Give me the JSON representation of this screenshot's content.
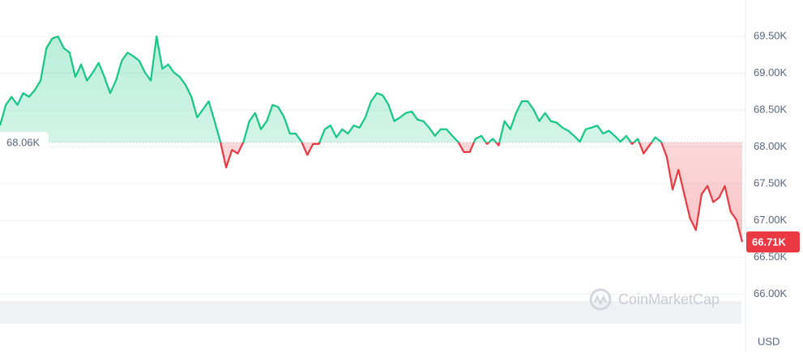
{
  "chart_data": {
    "type": "line",
    "values": [
      68.29,
      68.57,
      68.68,
      68.57,
      68.73,
      68.68,
      68.77,
      68.9,
      69.34,
      69.47,
      69.5,
      69.34,
      69.28,
      68.95,
      69.12,
      68.9,
      69.01,
      69.14,
      68.95,
      68.73,
      68.9,
      69.17,
      69.28,
      69.23,
      69.17,
      69.01,
      68.9,
      69.5,
      69.06,
      69.12,
      69.01,
      68.95,
      68.84,
      68.68,
      68.4,
      68.51,
      68.62,
      68.35,
      68.07,
      67.72,
      67.96,
      67.91,
      68.07,
      68.35,
      68.46,
      68.24,
      68.35,
      68.57,
      68.54,
      68.4,
      68.18,
      68.18,
      68.07,
      67.89,
      68.04,
      68.04,
      68.24,
      68.29,
      68.13,
      68.24,
      68.18,
      68.29,
      68.26,
      68.4,
      68.62,
      68.73,
      68.7,
      68.57,
      68.35,
      68.4,
      68.46,
      68.48,
      68.37,
      68.35,
      68.26,
      68.15,
      68.24,
      68.24,
      68.15,
      68.07,
      67.93,
      67.93,
      68.11,
      68.15,
      68.04,
      68.11,
      68.02,
      68.35,
      68.24,
      68.46,
      68.62,
      68.62,
      68.51,
      68.35,
      68.46,
      68.35,
      68.33,
      68.26,
      68.22,
      68.15,
      68.07,
      68.24,
      68.26,
      68.29,
      68.18,
      68.22,
      68.15,
      68.07,
      68.15,
      68.04,
      68.11,
      67.91,
      68.02,
      68.13,
      68.07,
      67.86,
      67.42,
      67.69,
      67.36,
      67.03,
      66.87,
      67.36,
      67.47,
      67.25,
      67.31,
      67.47,
      67.12,
      67.01,
      66.71
    ],
    "baseline": {
      "value": 68.06,
      "label": "68.06K"
    },
    "last_price": {
      "value": 66.71,
      "label": "66.71K"
    },
    "ylim": [
      65.6,
      69.95
    ],
    "yticks": [
      {
        "value": 66.0,
        "label": "66.00K"
      },
      {
        "value": 66.5,
        "label": "66.50K"
      },
      {
        "value": 67.0,
        "label": "67.00K"
      },
      {
        "value": 67.5,
        "label": "67.50K"
      },
      {
        "value": 68.0,
        "label": "68.00K"
      },
      {
        "value": 68.5,
        "label": "68.50K"
      },
      {
        "value": 69.0,
        "label": "69.00K"
      },
      {
        "value": 69.5,
        "label": "69.50K"
      }
    ],
    "grid": true,
    "currency": "USD",
    "up_color": "#16c784",
    "down_color": "#ea3943"
  },
  "watermark": "CoinMarketCap"
}
